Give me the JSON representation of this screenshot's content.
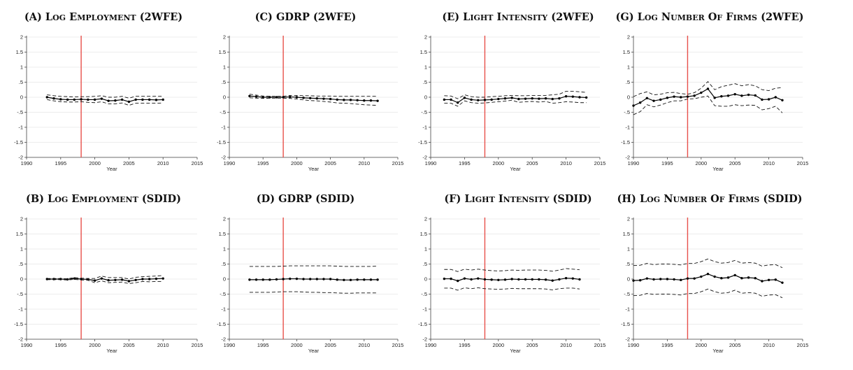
{
  "colors": {
    "event_line": "#e8504a",
    "line": "#000000",
    "grid": "#e6e6e6"
  },
  "chart_data": [
    {
      "panel": "A",
      "type": "line",
      "title_prefix": "(A)",
      "title_text": "Log Employment (2WFE)",
      "xlabel": "Year",
      "ylabel": "",
      "xlim": [
        1990,
        2015
      ],
      "ylim": [
        -2,
        2
      ],
      "xticks": [
        1990,
        1995,
        2000,
        2005,
        2010,
        2015
      ],
      "yticks": [
        -2,
        -1.5,
        -1,
        -0.5,
        0,
        0.5,
        1,
        1.5,
        2
      ],
      "event_year": 1998,
      "grid": true,
      "x": [
        1993,
        1994,
        1995,
        1996,
        1997,
        1998,
        1999,
        2000,
        2001,
        2002,
        2003,
        2004,
        2005,
        2006,
        2007,
        2008,
        2009,
        2010
      ],
      "series": [
        {
          "role": "estimate",
          "values": [
            0.0,
            -0.04,
            -0.07,
            -0.08,
            -0.08,
            -0.07,
            -0.08,
            -0.08,
            -0.05,
            -0.12,
            -0.11,
            -0.08,
            -0.15,
            -0.08,
            -0.08,
            -0.08,
            -0.09,
            -0.08
          ]
        },
        {
          "role": "ci_upper",
          "values": [
            0.08,
            0.05,
            0.03,
            0.02,
            0.01,
            0.02,
            0.02,
            0.03,
            0.05,
            0.0,
            0.0,
            0.03,
            -0.03,
            0.03,
            0.03,
            0.03,
            0.03,
            0.03
          ]
        },
        {
          "role": "ci_lower",
          "values": [
            -0.08,
            -0.12,
            -0.15,
            -0.16,
            -0.16,
            -0.15,
            -0.17,
            -0.18,
            -0.15,
            -0.22,
            -0.22,
            -0.19,
            -0.27,
            -0.2,
            -0.2,
            -0.2,
            -0.2,
            -0.19
          ]
        }
      ]
    },
    {
      "panel": "C",
      "type": "line",
      "title_prefix": "(C)",
      "title_text": "GDRP (2WFE)",
      "xlabel": "Year",
      "ylabel": "",
      "xlim": [
        1990,
        2015
      ],
      "ylim": [
        -2,
        2
      ],
      "xticks": [
        1990,
        1995,
        2000,
        2005,
        2010,
        2015
      ],
      "yticks": [
        -2,
        -1.5,
        -1,
        -0.5,
        0,
        0.5,
        1,
        1.5,
        2
      ],
      "event_year": 1998,
      "grid": true,
      "x": [
        1993,
        1994,
        1995,
        1996,
        1997,
        1998,
        1999,
        2000,
        2001,
        2002,
        2003,
        2004,
        2005,
        2006,
        2007,
        2008,
        2009,
        2010,
        2011,
        2012
      ],
      "series": [
        {
          "role": "estimate",
          "values": [
            0.04,
            0.02,
            0.0,
            0.0,
            0.0,
            0.0,
            0.01,
            0.0,
            -0.02,
            -0.03,
            -0.04,
            -0.05,
            -0.06,
            -0.08,
            -0.09,
            -0.09,
            -0.1,
            -0.11,
            -0.11,
            -0.12
          ]
        },
        {
          "role": "ci_upper",
          "values": [
            0.1,
            0.07,
            0.04,
            0.03,
            0.03,
            0.03,
            0.06,
            0.06,
            0.05,
            0.05,
            0.04,
            0.04,
            0.04,
            0.03,
            0.03,
            0.03,
            0.03,
            0.03,
            0.03,
            0.03
          ]
        },
        {
          "role": "ci_lower",
          "values": [
            -0.02,
            -0.03,
            -0.04,
            -0.03,
            -0.03,
            -0.03,
            -0.04,
            -0.06,
            -0.09,
            -0.11,
            -0.12,
            -0.14,
            -0.16,
            -0.19,
            -0.2,
            -0.21,
            -0.23,
            -0.25,
            -0.26,
            -0.27
          ]
        }
      ]
    },
    {
      "panel": "E",
      "type": "line",
      "title_prefix": "(E)",
      "title_text": "Light Intensity (2WFE)",
      "xlabel": "Year",
      "ylabel": "",
      "xlim": [
        1990,
        2015
      ],
      "ylim": [
        -2,
        2
      ],
      "xticks": [
        1990,
        1995,
        2000,
        2005,
        2010,
        2015
      ],
      "yticks": [
        -2,
        -1.5,
        -1,
        -0.5,
        0,
        0.5,
        1,
        1.5,
        2
      ],
      "event_year": 1998,
      "grid": true,
      "x": [
        1992,
        1993,
        1994,
        1995,
        1996,
        1997,
        1998,
        1999,
        2000,
        2001,
        2002,
        2003,
        2004,
        2005,
        2006,
        2007,
        2008,
        2009,
        2010,
        2011,
        2012,
        2013
      ],
      "series": [
        {
          "role": "estimate",
          "values": [
            -0.08,
            -0.08,
            -0.18,
            -0.02,
            -0.08,
            -0.1,
            -0.09,
            -0.08,
            -0.06,
            -0.04,
            -0.02,
            -0.06,
            -0.05,
            -0.04,
            -0.05,
            -0.04,
            -0.06,
            -0.04,
            0.03,
            0.02,
            0.0,
            -0.01
          ]
        },
        {
          "role": "ci_upper",
          "values": [
            0.05,
            0.04,
            -0.05,
            0.08,
            0.02,
            0.0,
            0.0,
            0.02,
            0.03,
            0.05,
            0.06,
            0.05,
            0.05,
            0.06,
            0.06,
            0.06,
            0.08,
            0.1,
            0.2,
            0.2,
            0.18,
            0.16
          ]
        },
        {
          "role": "ci_lower",
          "values": [
            -0.2,
            -0.2,
            -0.3,
            -0.12,
            -0.18,
            -0.2,
            -0.19,
            -0.17,
            -0.15,
            -0.13,
            -0.1,
            -0.17,
            -0.15,
            -0.14,
            -0.16,
            -0.14,
            -0.2,
            -0.18,
            -0.15,
            -0.16,
            -0.18,
            -0.18
          ]
        }
      ]
    },
    {
      "panel": "G",
      "type": "line",
      "title_prefix": "(G)",
      "title_text": "Log Number of Firms (2WFE)",
      "xlabel": "Year",
      "ylabel": "",
      "xlim": [
        1990,
        2015
      ],
      "ylim": [
        -2,
        2
      ],
      "xticks": [
        1990,
        1995,
        2000,
        2005,
        2010,
        2015
      ],
      "yticks": [
        -2,
        -1.5,
        -1,
        -0.5,
        0,
        0.5,
        1,
        1.5,
        2
      ],
      "event_year": 1998,
      "grid": true,
      "x": [
        1990,
        1991,
        1992,
        1993,
        1994,
        1995,
        1996,
        1997,
        1998,
        1999,
        2000,
        2001,
        2002,
        2003,
        2004,
        2005,
        2006,
        2007,
        2008,
        2009,
        2010,
        2011,
        2012
      ],
      "series": [
        {
          "role": "estimate",
          "values": [
            -0.28,
            -0.18,
            -0.03,
            -0.12,
            -0.08,
            -0.02,
            0.02,
            0.0,
            0.02,
            0.05,
            0.15,
            0.28,
            -0.02,
            0.03,
            0.05,
            0.1,
            0.05,
            0.08,
            0.06,
            -0.08,
            -0.07,
            0.0,
            -0.1
          ]
        },
        {
          "role": "ci_upper",
          "values": [
            0.02,
            0.12,
            0.18,
            0.08,
            0.1,
            0.15,
            0.16,
            0.12,
            0.1,
            0.15,
            0.3,
            0.52,
            0.25,
            0.35,
            0.4,
            0.45,
            0.38,
            0.42,
            0.38,
            0.25,
            0.22,
            0.3,
            0.32
          ]
        },
        {
          "role": "ci_lower",
          "values": [
            -0.58,
            -0.48,
            -0.25,
            -0.32,
            -0.26,
            -0.18,
            -0.12,
            -0.12,
            -0.06,
            -0.05,
            0.0,
            0.04,
            -0.28,
            -0.3,
            -0.3,
            -0.25,
            -0.28,
            -0.26,
            -0.27,
            -0.42,
            -0.38,
            -0.3,
            -0.52
          ]
        }
      ]
    },
    {
      "panel": "B",
      "type": "line",
      "title_prefix": "(B)",
      "title_text": "Log Employment (SDID)",
      "xlabel": "Year",
      "ylabel": "",
      "xlim": [
        1990,
        2015
      ],
      "ylim": [
        -2,
        2
      ],
      "xticks": [
        1990,
        1995,
        2000,
        2005,
        2010,
        2015
      ],
      "yticks": [
        -2,
        -1.5,
        -1,
        -0.5,
        0,
        0.5,
        1,
        1.5,
        2
      ],
      "event_year": 1998,
      "grid": true,
      "x": [
        1993,
        1994,
        1995,
        1996,
        1997,
        1998,
        1999,
        2000,
        2001,
        2002,
        2003,
        2004,
        2005,
        2006,
        2007,
        2008,
        2009,
        2010
      ],
      "series": [
        {
          "role": "estimate",
          "values": [
            0.0,
            0.0,
            0.0,
            -0.01,
            0.02,
            0.0,
            -0.01,
            -0.05,
            0.02,
            -0.04,
            -0.03,
            -0.02,
            -0.07,
            -0.03,
            0.0,
            0.0,
            0.01,
            0.02
          ]
        },
        {
          "role": "ci_upper",
          "values": [
            0.02,
            0.02,
            0.02,
            0.01,
            0.05,
            0.03,
            0.02,
            0.02,
            0.1,
            0.05,
            0.05,
            0.05,
            0.0,
            0.06,
            0.08,
            0.09,
            0.1,
            0.12
          ]
        },
        {
          "role": "ci_lower",
          "values": [
            -0.02,
            -0.02,
            -0.02,
            -0.03,
            -0.01,
            -0.03,
            -0.04,
            -0.12,
            -0.06,
            -0.12,
            -0.11,
            -0.1,
            -0.15,
            -0.12,
            -0.08,
            -0.09,
            -0.08,
            -0.08
          ]
        }
      ]
    },
    {
      "panel": "D",
      "type": "line",
      "title_prefix": "(D)",
      "title_text": "GDRP (SDID)",
      "xlabel": "Year",
      "ylabel": "",
      "xlim": [
        1990,
        2015
      ],
      "ylim": [
        -2,
        2
      ],
      "xticks": [
        1990,
        1995,
        2000,
        2005,
        2010,
        2015
      ],
      "yticks": [
        -2,
        -1.5,
        -1,
        -0.5,
        0,
        0.5,
        1,
        1.5,
        2
      ],
      "event_year": 1998,
      "grid": true,
      "x": [
        1993,
        1994,
        1995,
        1996,
        1997,
        1998,
        1999,
        2000,
        2001,
        2002,
        2003,
        2004,
        2005,
        2006,
        2007,
        2008,
        2009,
        2010,
        2011,
        2012
      ],
      "series": [
        {
          "role": "estimate",
          "values": [
            -0.02,
            -0.02,
            -0.02,
            -0.02,
            -0.01,
            0.0,
            0.01,
            0.01,
            0.0,
            0.0,
            0.0,
            0.0,
            0.0,
            -0.02,
            -0.03,
            -0.03,
            -0.02,
            -0.02,
            -0.02,
            -0.02
          ]
        },
        {
          "role": "ci_upper",
          "values": [
            0.42,
            0.42,
            0.42,
            0.42,
            0.42,
            0.43,
            0.44,
            0.44,
            0.44,
            0.44,
            0.44,
            0.44,
            0.44,
            0.43,
            0.42,
            0.42,
            0.42,
            0.42,
            0.42,
            0.43
          ]
        },
        {
          "role": "ci_lower",
          "values": [
            -0.44,
            -0.44,
            -0.44,
            -0.44,
            -0.43,
            -0.42,
            -0.42,
            -0.42,
            -0.43,
            -0.44,
            -0.44,
            -0.45,
            -0.45,
            -0.46,
            -0.47,
            -0.47,
            -0.46,
            -0.46,
            -0.46,
            -0.46
          ]
        }
      ]
    },
    {
      "panel": "F",
      "type": "line",
      "title_prefix": "(F)",
      "title_text": "Light Intensity (SDID)",
      "xlabel": "Year",
      "ylabel": "",
      "xlim": [
        1990,
        2015
      ],
      "ylim": [
        -2,
        2
      ],
      "xticks": [
        1990,
        1995,
        2000,
        2005,
        2010,
        2015
      ],
      "yticks": [
        -2,
        -1.5,
        -1,
        -0.5,
        0,
        0.5,
        1,
        1.5,
        2
      ],
      "event_year": 1998,
      "grid": true,
      "x": [
        1992,
        1993,
        1994,
        1995,
        1996,
        1997,
        1998,
        1999,
        2000,
        2001,
        2002,
        2003,
        2004,
        2005,
        2006,
        2007,
        2008,
        2009,
        2010,
        2011,
        2012
      ],
      "series": [
        {
          "role": "estimate",
          "values": [
            0.01,
            0.01,
            -0.06,
            0.02,
            -0.01,
            0.02,
            -0.01,
            -0.02,
            -0.03,
            -0.02,
            0.0,
            -0.01,
            -0.01,
            -0.01,
            -0.01,
            -0.02,
            -0.05,
            -0.01,
            0.03,
            0.02,
            -0.01
          ]
        },
        {
          "role": "ci_upper",
          "values": [
            0.32,
            0.32,
            0.25,
            0.33,
            0.3,
            0.33,
            0.3,
            0.28,
            0.27,
            0.28,
            0.3,
            0.29,
            0.3,
            0.3,
            0.3,
            0.29,
            0.26,
            0.3,
            0.35,
            0.33,
            0.31
          ]
        },
        {
          "role": "ci_lower",
          "values": [
            -0.3,
            -0.3,
            -0.37,
            -0.29,
            -0.32,
            -0.29,
            -0.32,
            -0.33,
            -0.34,
            -0.33,
            -0.31,
            -0.32,
            -0.32,
            -0.32,
            -0.32,
            -0.33,
            -0.36,
            -0.32,
            -0.3,
            -0.3,
            -0.33
          ]
        }
      ]
    },
    {
      "panel": "H",
      "type": "line",
      "title_prefix": "(H)",
      "title_text": "Log Number of Firms (SDID)",
      "xlabel": "Year",
      "ylabel": "",
      "xlim": [
        1990,
        2015
      ],
      "ylim": [
        -2,
        2
      ],
      "xticks": [
        1990,
        1995,
        2000,
        2005,
        2010,
        2015
      ],
      "yticks": [
        -2,
        -1.5,
        -1,
        -0.5,
        0,
        0.5,
        1,
        1.5,
        2
      ],
      "event_year": 1998,
      "grid": true,
      "x": [
        1990,
        1991,
        1992,
        1993,
        1994,
        1995,
        1996,
        1997,
        1998,
        1999,
        2000,
        2001,
        2002,
        2003,
        2004,
        2005,
        2006,
        2007,
        2008,
        2009,
        2010,
        2011,
        2012
      ],
      "series": [
        {
          "role": "estimate",
          "values": [
            -0.05,
            -0.04,
            0.02,
            -0.01,
            0.0,
            0.0,
            -0.01,
            -0.03,
            0.02,
            0.02,
            0.08,
            0.17,
            0.08,
            0.03,
            0.05,
            0.13,
            0.03,
            0.05,
            0.03,
            -0.07,
            -0.03,
            -0.02,
            -0.12
          ]
        },
        {
          "role": "ci_upper",
          "values": [
            0.45,
            0.46,
            0.52,
            0.48,
            0.5,
            0.5,
            0.49,
            0.47,
            0.52,
            0.52,
            0.58,
            0.67,
            0.58,
            0.53,
            0.55,
            0.62,
            0.53,
            0.55,
            0.53,
            0.43,
            0.47,
            0.48,
            0.38
          ]
        },
        {
          "role": "ci_lower",
          "values": [
            -0.55,
            -0.54,
            -0.48,
            -0.51,
            -0.5,
            -0.5,
            -0.51,
            -0.53,
            -0.48,
            -0.48,
            -0.42,
            -0.33,
            -0.42,
            -0.47,
            -0.45,
            -0.37,
            -0.47,
            -0.45,
            -0.47,
            -0.57,
            -0.53,
            -0.52,
            -0.62
          ]
        }
      ]
    }
  ]
}
